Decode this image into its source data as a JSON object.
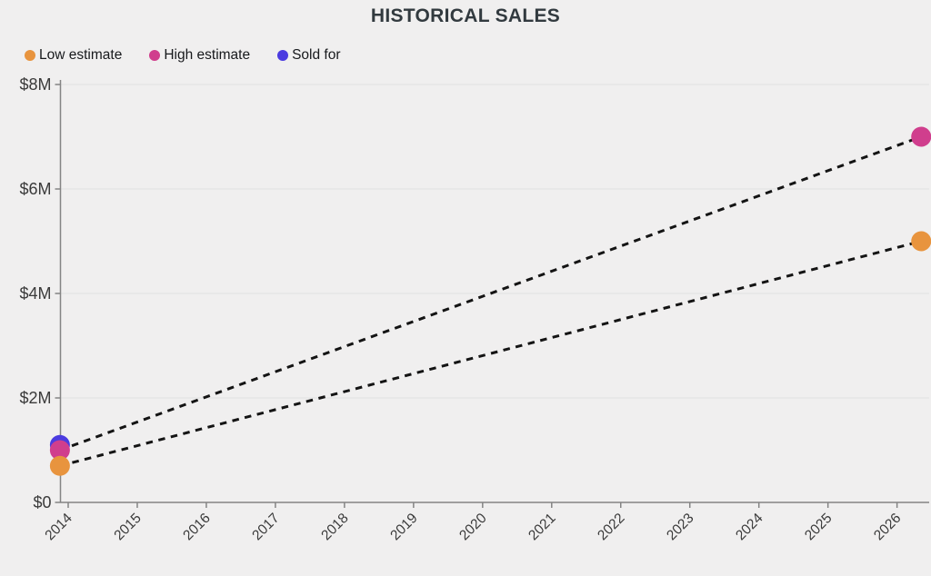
{
  "chart_data": {
    "type": "scatter",
    "title": "HISTORICAL SALES",
    "y_unit": "USD millions",
    "ylim": [
      0,
      8
    ],
    "grid": true,
    "legend_position": "top-left",
    "y_ticks": [
      {
        "label": "$0",
        "value": 0
      },
      {
        "label": "$2M",
        "value": 2
      },
      {
        "label": "$4M",
        "value": 4
      },
      {
        "label": "$6M",
        "value": 6
      },
      {
        "label": "$8M",
        "value": 8
      }
    ],
    "x_ticks": [
      {
        "label": "2014",
        "value": 2014
      },
      {
        "label": "2015",
        "value": 2015
      },
      {
        "label": "2016",
        "value": 2016
      },
      {
        "label": "2017",
        "value": 2017
      },
      {
        "label": "2018",
        "value": 2018
      },
      {
        "label": "2019",
        "value": 2019
      },
      {
        "label": "2020",
        "value": 2020
      },
      {
        "label": "2021",
        "value": 2021
      },
      {
        "label": "2022",
        "value": 2022
      },
      {
        "label": "2023",
        "value": 2023
      },
      {
        "label": "2024",
        "value": 2024
      },
      {
        "label": "2025",
        "value": 2025
      },
      {
        "label": "2026",
        "value": 2026
      }
    ],
    "series": [
      {
        "name": "Low estimate",
        "color": "#e8943e",
        "line": "dashed",
        "points": [
          {
            "x": 2013.88,
            "y": 0.7
          },
          {
            "x": 2026.35,
            "y": 5.0
          }
        ]
      },
      {
        "name": "High estimate",
        "color": "#d03e8d",
        "line": "dashed",
        "points": [
          {
            "x": 2013.88,
            "y": 1.0
          },
          {
            "x": 2026.35,
            "y": 7.0
          }
        ]
      },
      {
        "name": "Sold for",
        "color": "#4b3be0",
        "line": "none",
        "points": [
          {
            "x": 2013.88,
            "y": 1.1
          }
        ]
      }
    ],
    "trend_line_color": "#141414",
    "colors": {
      "background": "#f0efef",
      "axis": "#848484",
      "gridline": "#e6e6e6",
      "tick_label": "#3a3a3a",
      "title": "#323a3f"
    }
  }
}
